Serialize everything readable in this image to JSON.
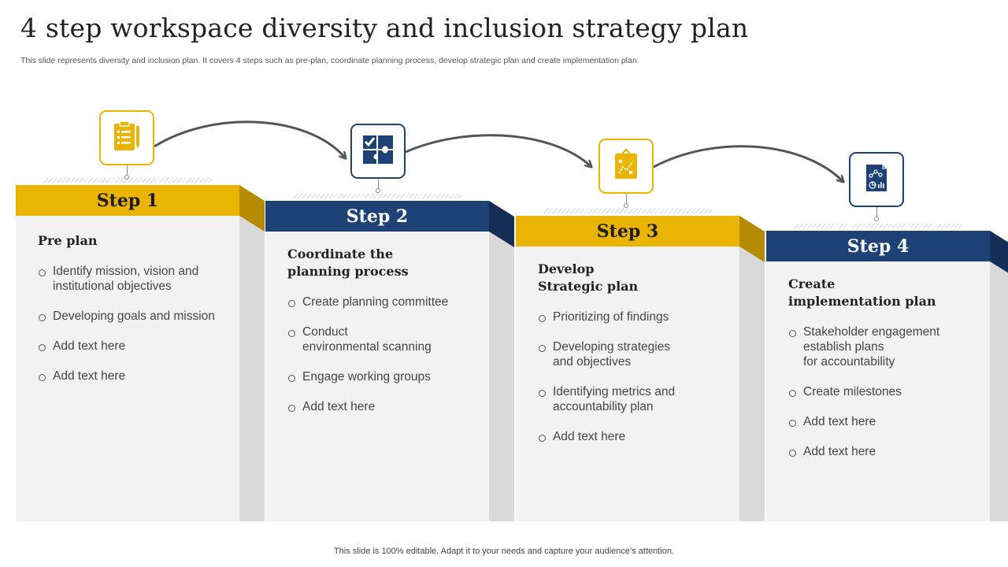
{
  "slide": {
    "title": "4 step workspace diversity and inclusion strategy plan",
    "subtitle": "This slide represents diversity and inclusion plan. It covers 4 steps such as pre-plan, coordinate planning process, develop strategic plan and create implementation plan.",
    "footer": "This slide is 100% editable. Adapt it to your needs and capture your audience’s attention."
  },
  "colors": {
    "yellow": "#e9b404",
    "blue": "#1e4275",
    "card": "#f2f2f2",
    "side": "#d9d9d9"
  },
  "steps": [
    {
      "label": "Step 1",
      "color": "yellow",
      "icon": "clipboard-icon",
      "heading": "Pre plan",
      "bullets": [
        "Identify  mission, vision and\ninstitutional objectives",
        "Developing goals and mission",
        "Add text here",
        "Add text here"
      ]
    },
    {
      "label": "Step 2",
      "color": "blue",
      "icon": "puzzle-checkmark-icon",
      "heading": "Coordinate the\nplanning process",
      "bullets": [
        "Create planning committee",
        "Conduct\nenvironmental scanning",
        "Engage working groups",
        "Add text here"
      ]
    },
    {
      "label": "Step 3",
      "color": "yellow",
      "icon": "strategy-board-icon",
      "heading": "Develop\nStrategic plan",
      "bullets": [
        "Prioritizing of findings",
        "Developing strategies\nand objectives",
        "Identifying metrics and\naccountability plan",
        "Add text here"
      ]
    },
    {
      "label": "Step 4",
      "color": "blue",
      "icon": "analytics-report-icon",
      "heading": "Create\nimplementation plan",
      "bullets": [
        "Stakeholder engagement\nestablish plans\nfor accountability",
        "Create milestones",
        "Add text here",
        "Add text here"
      ]
    }
  ]
}
